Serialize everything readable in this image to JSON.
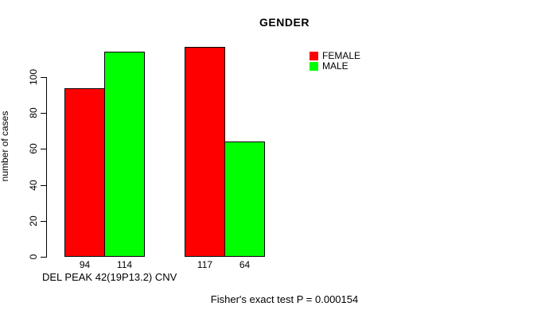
{
  "title": "GENDER",
  "chart_data": {
    "type": "bar",
    "title": "GENDER",
    "xlabel": "DEL PEAK 42(19P13.2) CNV",
    "ylabel": "number of cases",
    "ylim": [
      0,
      120
    ],
    "yticks": [
      0,
      20,
      40,
      60,
      80,
      100
    ],
    "grid": false,
    "legend_position": "top-right",
    "categories": [
      "",
      ""
    ],
    "series": [
      {
        "name": "FEMALE",
        "color": "#ff0000",
        "values": [
          94,
          117
        ]
      },
      {
        "name": "MALE",
        "color": "#00ff00",
        "values": [
          114,
          64
        ]
      }
    ],
    "bar_value_labels": [
      "94",
      "114",
      "117",
      "64"
    ],
    "annotation": "Fisher's exact test P = 0.000154"
  },
  "legend": {
    "items": [
      {
        "label": "FEMALE",
        "color": "#ff0000"
      },
      {
        "label": "MALE",
        "color": "#00ff00"
      }
    ]
  },
  "footnote": "Fisher's exact test P = 0.000154",
  "colors": {
    "background": "#ffffff",
    "axis": "#000000",
    "bar_border": "#000000",
    "female": "#ff0000",
    "male": "#00ff00"
  }
}
